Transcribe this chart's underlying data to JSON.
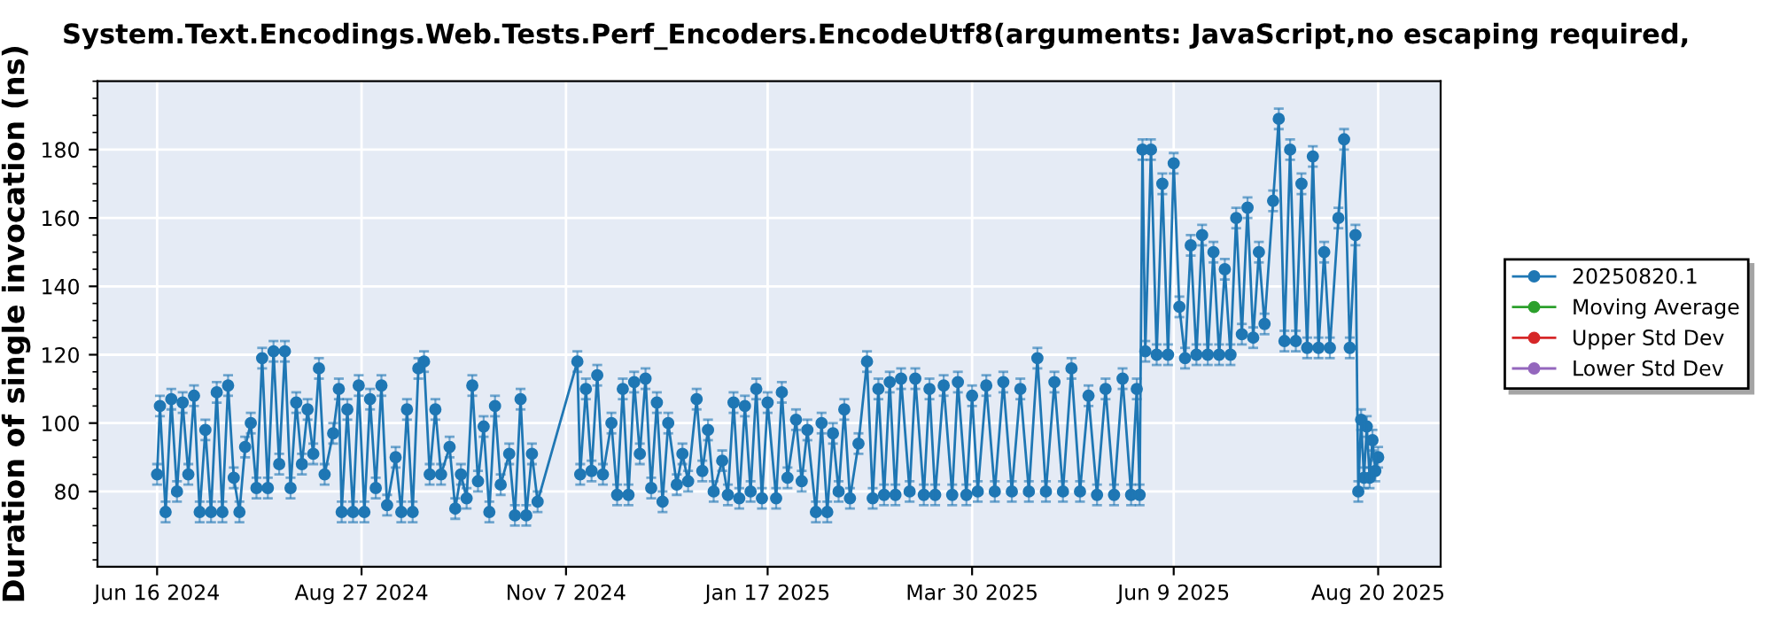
{
  "chart_data": {
    "type": "line",
    "title": "System.Text.Encodings.Web.Tests.Perf_Encoders.EncodeUtf8(arguments: JavaScript,no escaping required,",
    "ylabel": "Duration of single invocation (ns)",
    "x": [
      "2024-06-16",
      "2024-06-17",
      "2024-06-19",
      "2024-06-21",
      "2024-06-23",
      "2024-06-25",
      "2024-06-27",
      "2024-06-29",
      "2024-07-01",
      "2024-07-03",
      "2024-07-05",
      "2024-07-07",
      "2024-07-09",
      "2024-07-11",
      "2024-07-13",
      "2024-07-15",
      "2024-07-17",
      "2024-07-19",
      "2024-07-21",
      "2024-07-23",
      "2024-07-25",
      "2024-07-27",
      "2024-07-29",
      "2024-07-31",
      "2024-08-02",
      "2024-08-04",
      "2024-08-06",
      "2024-08-08",
      "2024-08-10",
      "2024-08-12",
      "2024-08-14",
      "2024-08-17",
      "2024-08-19",
      "2024-08-20",
      "2024-08-22",
      "2024-08-24",
      "2024-08-26",
      "2024-08-28",
      "2024-08-30",
      "2024-09-01",
      "2024-09-03",
      "2024-09-05",
      "2024-09-08",
      "2024-09-10",
      "2024-09-12",
      "2024-09-14",
      "2024-09-16",
      "2024-09-18",
      "2024-09-20",
      "2024-09-22",
      "2024-09-24",
      "2024-09-27",
      "2024-09-29",
      "2024-10-01",
      "2024-10-03",
      "2024-10-05",
      "2024-10-07",
      "2024-10-09",
      "2024-10-11",
      "2024-10-13",
      "2024-10-15",
      "2024-10-18",
      "2024-10-20",
      "2024-10-22",
      "2024-10-24",
      "2024-10-26",
      "2024-10-28",
      "2024-11-11",
      "2024-11-12",
      "2024-11-14",
      "2024-11-16",
      "2024-11-18",
      "2024-11-20",
      "2024-11-23",
      "2024-11-25",
      "2024-11-27",
      "2024-11-29",
      "2024-12-01",
      "2024-12-03",
      "2024-12-05",
      "2024-12-07",
      "2024-12-09",
      "2024-12-11",
      "2024-12-13",
      "2024-12-16",
      "2024-12-18",
      "2024-12-20",
      "2024-12-23",
      "2024-12-25",
      "2024-12-27",
      "2024-12-29",
      "2025-01-01",
      "2025-01-03",
      "2025-01-05",
      "2025-01-07",
      "2025-01-09",
      "2025-01-11",
      "2025-01-13",
      "2025-01-15",
      "2025-01-17",
      "2025-01-20",
      "2025-01-22",
      "2025-01-24",
      "2025-01-27",
      "2025-01-29",
      "2025-01-31",
      "2025-02-03",
      "2025-02-05",
      "2025-02-07",
      "2025-02-09",
      "2025-02-11",
      "2025-02-13",
      "2025-02-15",
      "2025-02-18",
      "2025-02-21",
      "2025-02-23",
      "2025-02-25",
      "2025-02-27",
      "2025-03-01",
      "2025-03-03",
      "2025-03-05",
      "2025-03-08",
      "2025-03-10",
      "2025-03-13",
      "2025-03-15",
      "2025-03-17",
      "2025-03-20",
      "2025-03-23",
      "2025-03-25",
      "2025-03-28",
      "2025-03-30",
      "2025-04-01",
      "2025-04-04",
      "2025-04-07",
      "2025-04-10",
      "2025-04-13",
      "2025-04-16",
      "2025-04-19",
      "2025-04-22",
      "2025-04-25",
      "2025-04-28",
      "2025-05-01",
      "2025-05-04",
      "2025-05-07",
      "2025-05-10",
      "2025-05-13",
      "2025-05-16",
      "2025-05-19",
      "2025-05-22",
      "2025-05-25",
      "2025-05-27",
      "2025-05-28",
      "2025-05-29",
      "2025-05-30",
      "2025-06-01",
      "2025-06-03",
      "2025-06-05",
      "2025-06-07",
      "2025-06-09",
      "2025-06-11",
      "2025-06-13",
      "2025-06-15",
      "2025-06-17",
      "2025-06-19",
      "2025-06-21",
      "2025-06-23",
      "2025-06-25",
      "2025-06-27",
      "2025-06-29",
      "2025-07-01",
      "2025-07-03",
      "2025-07-05",
      "2025-07-07",
      "2025-07-09",
      "2025-07-11",
      "2025-07-14",
      "2025-07-16",
      "2025-07-18",
      "2025-07-20",
      "2025-07-22",
      "2025-07-24",
      "2025-07-26",
      "2025-07-28",
      "2025-07-30",
      "2025-08-01",
      "2025-08-03",
      "2025-08-06",
      "2025-08-08",
      "2025-08-10",
      "2025-08-12",
      "2025-08-13",
      "2025-08-14",
      "2025-08-15",
      "2025-08-16",
      "2025-08-17",
      "2025-08-18",
      "2025-08-19",
      "2025-08-20"
    ],
    "series": [
      {
        "name": "20250820.1",
        "color": "#1f77b4",
        "values": [
          85,
          105,
          74,
          107,
          80,
          106,
          85,
          108,
          74,
          98,
          74,
          109,
          74,
          111,
          84,
          74,
          93,
          100,
          81,
          119,
          81,
          121,
          88,
          121,
          81,
          106,
          88,
          104,
          91,
          116,
          85,
          97,
          110,
          74,
          104,
          74,
          111,
          74,
          107,
          81,
          111,
          76,
          90,
          74,
          104,
          74,
          116,
          118,
          85,
          104,
          85,
          93,
          75,
          85,
          78,
          111,
          83,
          99,
          74,
          105,
          82,
          91,
          73,
          107,
          73,
          91,
          77,
          118,
          85,
          110,
          86,
          114,
          85,
          100,
          79,
          110,
          79,
          112,
          91,
          113,
          81,
          106,
          77,
          100,
          82,
          91,
          83,
          107,
          86,
          98,
          80,
          89,
          79,
          106,
          78,
          105,
          80,
          110,
          78,
          106,
          78,
          109,
          84,
          101,
          83,
          98,
          74,
          100,
          74,
          97,
          80,
          104,
          78,
          94,
          118,
          78,
          110,
          79,
          112,
          79,
          113,
          80,
          113,
          79,
          110,
          79,
          111,
          79,
          112,
          79,
          108,
          80,
          111,
          80,
          112,
          80,
          110,
          80,
          119,
          80,
          112,
          80,
          116,
          80,
          108,
          79,
          110,
          79,
          113,
          79,
          110,
          79,
          180,
          121,
          180,
          120,
          170,
          120,
          176,
          134,
          119,
          152,
          120,
          155,
          120,
          150,
          120,
          145,
          120,
          160,
          126,
          163,
          125,
          150,
          129,
          165,
          189,
          124,
          180,
          124,
          170,
          122,
          178,
          122,
          150,
          122,
          160,
          183,
          122,
          155,
          80,
          101,
          84,
          99,
          84,
          95,
          86,
          90
        ],
        "errors": [
          3,
          3,
          3,
          3,
          3,
          3,
          3,
          3,
          3,
          3,
          3,
          3,
          3,
          3,
          3,
          3,
          3,
          3,
          3,
          3,
          3,
          3,
          3,
          3,
          3,
          3,
          3,
          3,
          3,
          3,
          3,
          3,
          3,
          3,
          3,
          3,
          3,
          3,
          3,
          3,
          3,
          3,
          3,
          3,
          3,
          3,
          3,
          3,
          3,
          3,
          3,
          3,
          3,
          3,
          3,
          3,
          3,
          3,
          3,
          3,
          3,
          3,
          3,
          3,
          3,
          3,
          3,
          3,
          3,
          3,
          3,
          3,
          3,
          3,
          3,
          3,
          3,
          3,
          3,
          3,
          3,
          3,
          3,
          3,
          3,
          3,
          3,
          3,
          3,
          3,
          3,
          3,
          3,
          3,
          3,
          3,
          3,
          3,
          3,
          3,
          3,
          3,
          3,
          3,
          3,
          3,
          3,
          3,
          3,
          3,
          3,
          3,
          3,
          3,
          3,
          3,
          3,
          3,
          3,
          3,
          3,
          3,
          3,
          3,
          3,
          3,
          3,
          3,
          3,
          3,
          3,
          3,
          3,
          3,
          3,
          3,
          3,
          3,
          3,
          3,
          3,
          3,
          3,
          3,
          3,
          3,
          3,
          3,
          3,
          3,
          3,
          3,
          3,
          3,
          3,
          3,
          3,
          3,
          3,
          3,
          3,
          3,
          3,
          3,
          3,
          3,
          3,
          3,
          3,
          3,
          3,
          3,
          3,
          3,
          3,
          3,
          3,
          3,
          3,
          3,
          3,
          3,
          3,
          3,
          3,
          3,
          3,
          3,
          3,
          3,
          3,
          3,
          3,
          3,
          3,
          3,
          3,
          3
        ]
      },
      {
        "name": "Moving Average",
        "color": "#2ca02c",
        "values": [
          null,
          null,
          null,
          null,
          null,
          null,
          null,
          null,
          null,
          null,
          null,
          null,
          null,
          null,
          null,
          null,
          null,
          null,
          null,
          null,
          null,
          null,
          null,
          null,
          null,
          null,
          null,
          null,
          null,
          null,
          null,
          null,
          null,
          null,
          null,
          null,
          null,
          null,
          null,
          null,
          null,
          null,
          null,
          null,
          null,
          null,
          null,
          null,
          null,
          null,
          null,
          null,
          null,
          null,
          null,
          null,
          null,
          null,
          null,
          null,
          null,
          null,
          null,
          null,
          null,
          null,
          null,
          null,
          null,
          null,
          null,
          null,
          null,
          null,
          null,
          null,
          null,
          null,
          null,
          null,
          null,
          null,
          null,
          null,
          null,
          null,
          null,
          null,
          null,
          null,
          null,
          null,
          null,
          null,
          null,
          null,
          null,
          null,
          null,
          null,
          null,
          null,
          null,
          null,
          null,
          null,
          null,
          null,
          null,
          null,
          null,
          null,
          null,
          null,
          null,
          null,
          null,
          null,
          null,
          null,
          null,
          null,
          null,
          null,
          null,
          null,
          null,
          null,
          null,
          null,
          null,
          null,
          null,
          null,
          null,
          null,
          null,
          null,
          null,
          null,
          null,
          null,
          null,
          null,
          null,
          null,
          null,
          null,
          null,
          null,
          null,
          null,
          null,
          null,
          null,
          null,
          null,
          null,
          null,
          null,
          null,
          null,
          null,
          null,
          null,
          null,
          null,
          null,
          null,
          null,
          null,
          null,
          null,
          null,
          null,
          null,
          null,
          null,
          null,
          null,
          null,
          null,
          null,
          null,
          null,
          null,
          null,
          null,
          null,
          null,
          null,
          null,
          null,
          null,
          null,
          null,
          null,
          null
        ]
      },
      {
        "name": "Upper Std Dev",
        "color": "#d62728",
        "values": [
          null,
          null,
          null,
          null,
          null,
          null,
          null,
          null,
          null,
          null,
          null,
          null,
          null,
          null,
          null,
          null,
          null,
          null,
          null,
          null,
          null,
          null,
          null,
          null,
          null,
          null,
          null,
          null,
          null,
          null,
          null,
          null,
          null,
          null,
          null,
          null,
          null,
          null,
          null,
          null,
          null,
          null,
          null,
          null,
          null,
          null,
          null,
          null,
          null,
          null,
          null,
          null,
          null,
          null,
          null,
          null,
          null,
          null,
          null,
          null,
          null,
          null,
          null,
          null,
          null,
          null,
          null,
          null,
          null,
          null,
          null,
          null,
          null,
          null,
          null,
          null,
          null,
          null,
          null,
          null,
          null,
          null,
          null,
          null,
          null,
          null,
          null,
          null,
          null,
          null,
          null,
          null,
          null,
          null,
          null,
          null,
          null,
          null,
          null,
          null,
          null,
          null,
          null,
          null,
          null,
          null,
          null,
          null,
          null,
          null,
          null,
          null,
          null,
          null,
          null,
          null,
          null,
          null,
          null,
          null,
          null,
          null,
          null,
          null,
          null,
          null,
          null,
          null,
          null,
          null,
          null,
          null,
          null,
          null,
          null,
          null,
          null,
          null,
          null,
          null,
          null,
          null,
          null,
          null,
          null,
          null,
          null,
          null,
          null,
          null,
          null,
          null,
          null,
          null,
          null,
          null,
          null,
          null,
          null,
          null,
          null,
          null,
          null,
          null,
          null,
          null,
          null,
          null,
          null,
          null,
          null,
          null,
          null,
          null,
          null,
          null,
          null,
          null,
          null,
          null,
          null,
          null,
          null,
          null,
          null,
          null,
          null,
          null,
          null,
          null,
          null,
          null,
          null,
          null,
          null,
          null,
          null,
          null
        ]
      },
      {
        "name": "Lower Std Dev",
        "color": "#9467bd",
        "values": [
          null,
          null,
          null,
          null,
          null,
          null,
          null,
          null,
          null,
          null,
          null,
          null,
          null,
          null,
          null,
          null,
          null,
          null,
          null,
          null,
          null,
          null,
          null,
          null,
          null,
          null,
          null,
          null,
          null,
          null,
          null,
          null,
          null,
          null,
          null,
          null,
          null,
          null,
          null,
          null,
          null,
          null,
          null,
          null,
          null,
          null,
          null,
          null,
          null,
          null,
          null,
          null,
          null,
          null,
          null,
          null,
          null,
          null,
          null,
          null,
          null,
          null,
          null,
          null,
          null,
          null,
          null,
          null,
          null,
          null,
          null,
          null,
          null,
          null,
          null,
          null,
          null,
          null,
          null,
          null,
          null,
          null,
          null,
          null,
          null,
          null,
          null,
          null,
          null,
          null,
          null,
          null,
          null,
          null,
          null,
          null,
          null,
          null,
          null,
          null,
          null,
          null,
          null,
          null,
          null,
          null,
          null,
          null,
          null,
          null,
          null,
          null,
          null,
          null,
          null,
          null,
          null,
          null,
          null,
          null,
          null,
          null,
          null,
          null,
          null,
          null,
          null,
          null,
          null,
          null,
          null,
          null,
          null,
          null,
          null,
          null,
          null,
          null,
          null,
          null,
          null,
          null,
          null,
          null,
          null,
          null,
          null,
          null,
          null,
          null,
          null,
          null,
          null,
          null,
          null,
          null,
          null,
          null,
          null,
          null,
          null,
          null,
          null,
          null,
          null,
          null,
          null,
          null,
          null,
          null,
          null,
          null,
          null,
          null,
          null,
          null,
          null,
          null,
          null,
          null,
          null,
          null,
          null,
          null,
          null,
          null,
          null,
          null,
          null,
          null,
          null,
          null,
          null,
          null,
          null,
          null,
          null,
          null
        ]
      }
    ],
    "xlim": [
      "2024-05-26",
      "2025-09-11"
    ],
    "xticks": [
      {
        "value": "2024-06-16",
        "label": "Jun 16 2024"
      },
      {
        "value": "2024-08-27",
        "label": "Aug 27 2024"
      },
      {
        "value": "2024-11-07",
        "label": "Nov 7 2024"
      },
      {
        "value": "2025-01-17",
        "label": "Jan 17 2025"
      },
      {
        "value": "2025-03-30",
        "label": "Mar 30 2025"
      },
      {
        "value": "2025-06-09",
        "label": "Jun 9 2025"
      },
      {
        "value": "2025-08-20",
        "label": "Aug 20 2025"
      }
    ],
    "ylim": [
      58,
      200
    ],
    "yticks": [
      80,
      100,
      120,
      140,
      160,
      180
    ],
    "grid": true,
    "legend": "right",
    "marker": "circle",
    "line_style": "solid"
  }
}
